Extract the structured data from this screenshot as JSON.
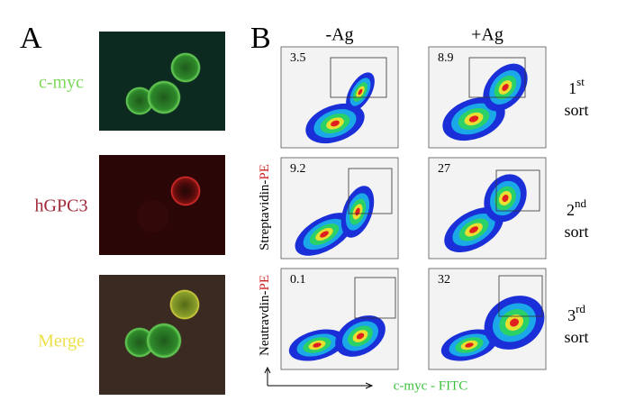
{
  "panel_a": {
    "label": "A",
    "rows": [
      {
        "label": "c-myc"
      },
      {
        "label": "hGPC3"
      },
      {
        "label": "Merge"
      }
    ]
  },
  "panel_b": {
    "label": "B",
    "columns": [
      "-Ag",
      "+Ag"
    ],
    "y_labels": [
      {
        "text": "Streptavidin-",
        "highlight": "PE"
      },
      {
        "text": "Neutravdin-",
        "highlight": "PE"
      }
    ],
    "x_label": "c-myc - FITC",
    "rows": [
      {
        "sort": {
          "ordinal": "1",
          "suffix": "st",
          "word": "sort"
        },
        "gates": [
          3.5,
          8.9
        ]
      },
      {
        "sort": {
          "ordinal": "2",
          "suffix": "nd",
          "word": "sort"
        },
        "gates": [
          9.2,
          27
        ]
      },
      {
        "sort": {
          "ordinal": "3",
          "suffix": "rd",
          "word": "sort"
        },
        "gates": [
          0.1,
          32
        ]
      }
    ]
  }
}
